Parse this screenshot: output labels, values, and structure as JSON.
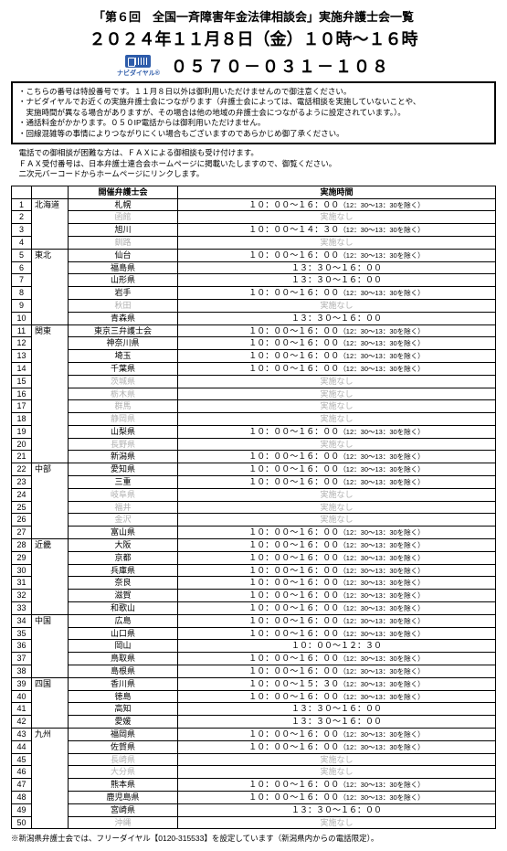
{
  "title": "「第６回　全国一斉障害年金法律相談会」実施弁護士会一覧",
  "date": "２０２４年１１月８日（金）１０時～１６時",
  "naviLabel": "ナビダイヤル®",
  "phone": "０５７０－０３１－１０８",
  "notices": [
    "・こちらの番号は特設番号です。１１月８日以外は御利用いただけませんので御注意ください。",
    "・ナビダイヤルでお近くの実施弁護士会につながります（弁護士会によっては、電話相談を実施していないことや、",
    "　実施時間が異なる場合がありますが、その場合は他の地域の弁護士会につながるように設定されています。）。",
    "・通話料金がかかります。０５０IP電話からは御利用いただけません。",
    "・回線混雑等の事情によりつながりにくい場合もございますのであらかじめ御了承ください。"
  ],
  "postNotices": [
    "　電話での御相談が困難な方は、ＦＡＸによる御相談も受け付けます。",
    "　ＦＡＸ受付番号は、日本弁護士連合会ホームページに掲載いたしますので、御覧ください。",
    "　二次元バーコードからホームページにリンクします。"
  ],
  "headers": {
    "bar": "開催弁護士会",
    "time": "実施時間"
  },
  "timeA": "１０：００～１６：００",
  "timeAsub": "（12：30～13：30を除く）",
  "timeB": "１０：００～１４：３０",
  "timeBsub": "（12：30～13：30を除く）",
  "timeC": "１３：３０～１６：００",
  "timeD": "１０：００～１２：３０",
  "none": "実施なし",
  "footnote": "※新潟県弁護士会では、フリーダイヤル【0120-315533】を設定しています（新潟県内からの電話限定）。",
  "rows": [
    {
      "n": "1",
      "reg": "北海道",
      "bar": "札幌",
      "t": "A"
    },
    {
      "n": "2",
      "bar": "函館",
      "gray": true,
      "t": "N"
    },
    {
      "n": "3",
      "bar": "旭川",
      "t": "B"
    },
    {
      "n": "4",
      "bar": "釧路",
      "gray": true,
      "t": "N"
    },
    {
      "n": "5",
      "reg": "東北",
      "bar": "仙台",
      "t": "A"
    },
    {
      "n": "6",
      "bar": "福島県",
      "t": "C"
    },
    {
      "n": "7",
      "bar": "山形県",
      "t": "C"
    },
    {
      "n": "8",
      "bar": "岩手",
      "t": "A"
    },
    {
      "n": "9",
      "bar": "秋田",
      "gray": true,
      "t": "N"
    },
    {
      "n": "10",
      "bar": "青森県",
      "t": "C"
    },
    {
      "n": "11",
      "reg": "関東",
      "bar": "東京三弁護士会",
      "t": "A"
    },
    {
      "n": "12",
      "bar": "神奈川県",
      "t": "A"
    },
    {
      "n": "13",
      "bar": "埼玉",
      "t": "A"
    },
    {
      "n": "14",
      "bar": "千葉県",
      "t": "A"
    },
    {
      "n": "15",
      "bar": "茨城県",
      "gray": true,
      "t": "N"
    },
    {
      "n": "16",
      "bar": "栃木県",
      "gray": true,
      "t": "N"
    },
    {
      "n": "17",
      "bar": "群馬",
      "gray": true,
      "t": "N"
    },
    {
      "n": "18",
      "bar": "静岡県",
      "gray": true,
      "t": "N"
    },
    {
      "n": "19",
      "bar": "山梨県",
      "t": "A"
    },
    {
      "n": "20",
      "bar": "長野県",
      "gray": true,
      "t": "N"
    },
    {
      "n": "21",
      "bar": "新潟県",
      "t": "A"
    },
    {
      "n": "22",
      "reg": "中部",
      "bar": "愛知県",
      "t": "A"
    },
    {
      "n": "23",
      "bar": "三重",
      "t": "A"
    },
    {
      "n": "24",
      "bar": "岐阜県",
      "gray": true,
      "t": "N"
    },
    {
      "n": "25",
      "bar": "福井",
      "gray": true,
      "t": "N"
    },
    {
      "n": "26",
      "bar": "金沢",
      "gray": true,
      "t": "N"
    },
    {
      "n": "27",
      "bar": "富山県",
      "t": "A"
    },
    {
      "n": "28",
      "reg": "近畿",
      "bar": "大阪",
      "t": "A"
    },
    {
      "n": "29",
      "bar": "京都",
      "t": "A"
    },
    {
      "n": "30",
      "bar": "兵庫県",
      "t": "A"
    },
    {
      "n": "31",
      "bar": "奈良",
      "t": "A"
    },
    {
      "n": "32",
      "bar": "滋賀",
      "t": "A"
    },
    {
      "n": "33",
      "bar": "和歌山",
      "t": "A"
    },
    {
      "n": "34",
      "reg": "中国",
      "bar": "広島",
      "t": "A"
    },
    {
      "n": "35",
      "bar": "山口県",
      "t": "A"
    },
    {
      "n": "36",
      "bar": "岡山",
      "t": "D"
    },
    {
      "n": "37",
      "bar": "鳥取県",
      "t": "A"
    },
    {
      "n": "38",
      "bar": "島根県",
      "t": "A"
    },
    {
      "n": "39",
      "reg": "四国",
      "bar": "香川県",
      "t": "A2",
      "tx": "１０：００～１５：３０",
      "sub": "（12：30～13：30を除く）"
    },
    {
      "n": "40",
      "bar": "徳島",
      "t": "A"
    },
    {
      "n": "41",
      "bar": "高知",
      "t": "C"
    },
    {
      "n": "42",
      "bar": "愛媛",
      "t": "C"
    },
    {
      "n": "43",
      "reg": "九州",
      "bar": "福岡県",
      "t": "A"
    },
    {
      "n": "44",
      "bar": "佐賀県",
      "t": "A"
    },
    {
      "n": "45",
      "bar": "長崎県",
      "gray": true,
      "t": "N"
    },
    {
      "n": "46",
      "bar": "大分県",
      "gray": true,
      "t": "N"
    },
    {
      "n": "47",
      "bar": "熊本県",
      "t": "A"
    },
    {
      "n": "48",
      "bar": "鹿児島県",
      "t": "A"
    },
    {
      "n": "49",
      "bar": "宮崎県",
      "t": "C"
    },
    {
      "n": "50",
      "bar": "沖縄",
      "gray": true,
      "t": "N"
    }
  ]
}
